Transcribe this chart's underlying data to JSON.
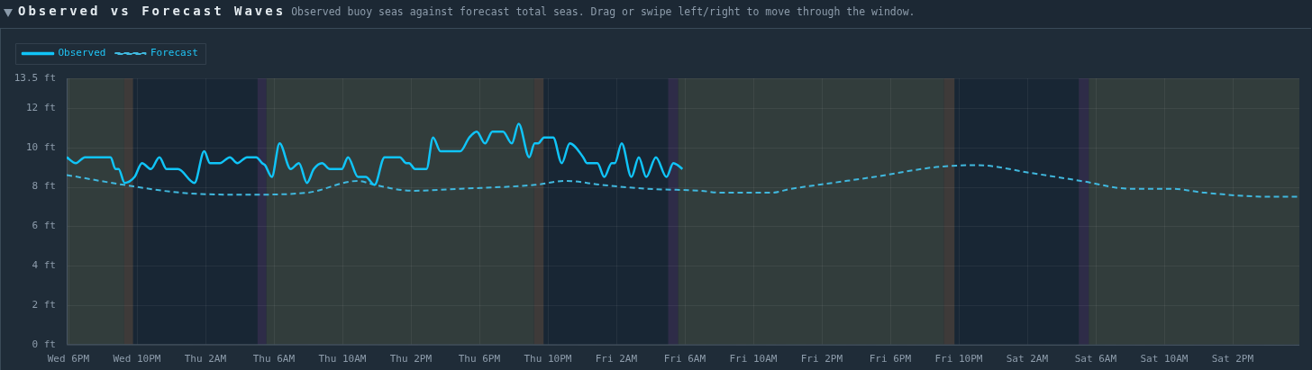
{
  "chart_data": {
    "type": "line",
    "title": "Observed vs Forecast Waves",
    "subtitle": "Observed buoy seas against forecast total seas. Drag or swipe left/right to move through the window.",
    "xlim": [
      "--01-03T17:54",
      "--01-06T17:54"
    ],
    "xticks": [
      {
        "value": "--01-03T18:00",
        "label": "Wed 6PM"
      },
      {
        "value": "--01-03T22:00",
        "label": "Wed 10PM"
      },
      {
        "value": "--01-04T02:00",
        "label": "Thu 2AM"
      },
      {
        "value": "--01-04T06:00",
        "label": "Thu 6AM"
      },
      {
        "value": "--01-04T10:00",
        "label": "Thu 10AM"
      },
      {
        "value": "--01-04T14:00",
        "label": "Thu 2PM"
      },
      {
        "value": "--01-04T18:00",
        "label": "Thu 6PM"
      },
      {
        "value": "--01-04T22:00",
        "label": "Thu 10PM"
      },
      {
        "value": "--01-05T02:00",
        "label": "Fri 2AM"
      },
      {
        "value": "--01-05T06:00",
        "label": "Fri 6AM"
      },
      {
        "value": "--01-05T10:00",
        "label": "Fri 10AM"
      },
      {
        "value": "--01-05T14:00",
        "label": "Fri 2PM"
      },
      {
        "value": "--01-05T18:00",
        "label": "Fri 6PM"
      },
      {
        "value": "--01-05T22:00",
        "label": "Fri 10PM"
      },
      {
        "value": "--01-06T02:00",
        "label": "Sat 2AM"
      },
      {
        "value": "--01-06T06:00",
        "label": "Sat 6AM"
      },
      {
        "value": "--01-06T10:00",
        "label": "Sat 10AM"
      },
      {
        "value": "--01-06T14:00",
        "label": "Sat 2PM"
      }
    ],
    "ylim": [
      0,
      13.5
    ],
    "yticks": [
      {
        "value": 0,
        "label": "0 ft"
      },
      {
        "value": 2,
        "label": "2 ft"
      },
      {
        "value": 4,
        "label": "4 ft"
      },
      {
        "value": 6,
        "label": "6 ft"
      },
      {
        "value": 8,
        "label": "8 ft"
      },
      {
        "value": 10,
        "label": "10 ft"
      },
      {
        "value": 12,
        "label": "12 ft"
      },
      {
        "value": 13.5,
        "label": "13.5 ft"
      }
    ],
    "grid": true,
    "legend": "top left",
    "series": [
      {
        "name": "Observed",
        "color": "#10c4f8",
        "line_style": "solid",
        "x": [
          "--01-03T17:54",
          "--01-03T18:26",
          "--01-03T18:58",
          "--01-03T20:28",
          "--01-03T20:45",
          "--01-03T20:56",
          "--01-03T21:17",
          "--01-03T21:52",
          "--01-03T22:18",
          "--01-03T22:49",
          "--01-03T23:19",
          "--01-03T23:44",
          "--01-04T00:24",
          "--01-04T01:22",
          "--01-04T01:56",
          "--01-04T02:16",
          "--01-04T02:51",
          "--01-04T03:26",
          "--01-04T03:52",
          "--01-04T04:26",
          "--01-04T04:58",
          "--01-04T05:19",
          "--01-04T05:29",
          "--01-04T05:53",
          "--01-04T06:20",
          "--01-04T06:59",
          "--01-04T07:28",
          "--01-04T07:56",
          "--01-04T08:20",
          "--01-04T08:49",
          "--01-04T09:16",
          "--01-04T09:58",
          "--01-04T10:20",
          "--01-04T10:55",
          "--01-04T11:22",
          "--01-04T11:53",
          "--01-04T12:28",
          "--01-04T13:22",
          "--01-04T13:44",
          "--01-04T13:54",
          "--01-04T14:15",
          "--01-04T14:55",
          "--01-04T15:18",
          "--01-04T15:44",
          "--01-04T16:53",
          "--01-04T17:25",
          "--01-04T17:51",
          "--01-04T18:20",
          "--01-04T18:46",
          "--01-04T19:23",
          "--01-04T19:54",
          "--01-04T20:18",
          "--01-04T20:55",
          "--01-04T21:14",
          "--01-04T21:26",
          "--01-04T21:47",
          "--01-04T22:19",
          "--01-04T22:49",
          "--01-04T23:17",
          "--01-05T00:04",
          "--01-05T00:17",
          "--01-05T00:54",
          "--01-05T01:18",
          "--01-05T01:44",
          "--01-05T01:55",
          "--01-05T02:19",
          "--01-05T02:53",
          "--01-05T03:19",
          "--01-05T03:45",
          "--01-05T04:19",
          "--01-05T04:56",
          "--01-05T05:20",
          "--01-05T05:35",
          "--01-05T05:52"
        ],
        "values": [
          9.5,
          9.2,
          9.5,
          9.5,
          8.9,
          8.9,
          8.2,
          8.5,
          9.2,
          8.9,
          9.5,
          8.9,
          8.9,
          8.2,
          9.8,
          9.2,
          9.2,
          9.5,
          9.2,
          9.5,
          9.5,
          9.2,
          9.1,
          8.5,
          10.2,
          8.9,
          9.2,
          8.2,
          8.9,
          9.2,
          8.9,
          8.9,
          9.5,
          8.5,
          8.5,
          8.1,
          9.5,
          9.5,
          9.2,
          9.2,
          8.9,
          8.9,
          10.5,
          9.8,
          9.8,
          10.5,
          10.8,
          10.2,
          10.8,
          10.8,
          10.2,
          11.2,
          9.5,
          10.2,
          10.2,
          10.5,
          10.5,
          9.2,
          10.2,
          9.5,
          9.2,
          9.2,
          8.5,
          9.2,
          9.2,
          10.2,
          8.5,
          9.5,
          8.5,
          9.5,
          8.5,
          9.2,
          9.1,
          8.9
        ]
      },
      {
        "name": "Forecast",
        "color": "#40b8de",
        "line_style": "dashed",
        "x": [
          "--01-03T17:54",
          "--01-03T21:14",
          "--01-04T00:35",
          "--01-04T04:26",
          "--01-04T07:56",
          "--01-04T10:55",
          "--01-04T11:53",
          "--01-04T14:05",
          "--01-04T16:53",
          "--01-04T21:16",
          "--01-04T23:01",
          "--01-05T01:08",
          "--01-05T03:45",
          "--01-05T06:55",
          "--01-05T08:07",
          "--01-05T11:01",
          "--01-05T12:13",
          "--01-05T14:38",
          "--01-05T17:04",
          "--01-05T20:41",
          "--01-05T23:06",
          "--01-06T02:14",
          "--01-06T05:08",
          "--01-06T08:02",
          "--01-06T10:26",
          "--01-06T12:23",
          "--01-06T16:00",
          "--01-06T17:54"
        ],
        "values": [
          8.6,
          8.1,
          7.7,
          7.6,
          7.7,
          8.3,
          8.1,
          7.8,
          7.9,
          8.1,
          8.3,
          8.1,
          7.9,
          7.8,
          7.7,
          7.7,
          7.9,
          8.2,
          8.5,
          9.0,
          9.1,
          8.7,
          8.3,
          7.9,
          7.9,
          7.7,
          7.5,
          7.5
        ]
      }
    ],
    "bands": [
      {
        "axis": "x",
        "from": "--01-03T17:54",
        "to": "--01-03T21:16",
        "color": "#323d3c"
      },
      {
        "axis": "x",
        "from": "--01-03T21:16",
        "to": "--01-03T21:47",
        "color": "#3e3a39"
      },
      {
        "axis": "x",
        "from": "--01-03T21:47",
        "to": "--01-04T05:03",
        "color": "#182634"
      },
      {
        "axis": "x",
        "from": "--01-04T05:03",
        "to": "--01-04T05:34",
        "color": "#2e2c48"
      },
      {
        "axis": "x",
        "from": "--01-04T05:34",
        "to": "--01-04T21:12",
        "color": "#323d3c"
      },
      {
        "axis": "x",
        "from": "--01-04T21:12",
        "to": "--01-04T21:46",
        "color": "#3e3a39"
      },
      {
        "axis": "x",
        "from": "--01-04T21:46",
        "to": "--01-05T05:02",
        "color": "#182634"
      },
      {
        "axis": "x",
        "from": "--01-05T05:02",
        "to": "--01-05T05:37",
        "color": "#2e2c48"
      },
      {
        "axis": "x",
        "from": "--01-05T05:37",
        "to": "--01-05T21:08",
        "color": "#323d3c"
      },
      {
        "axis": "x",
        "from": "--01-05T21:08",
        "to": "--01-05T21:46",
        "color": "#3e3a39"
      },
      {
        "axis": "x",
        "from": "--01-05T21:46",
        "to": "--01-06T05:01",
        "color": "#182634"
      },
      {
        "axis": "x",
        "from": "--01-06T05:01",
        "to": "--01-06T05:36",
        "color": "#2e2c48"
      },
      {
        "axis": "x",
        "from": "--01-06T05:36",
        "to": "--01-06T17:54",
        "color": "#323d3c"
      }
    ]
  }
}
